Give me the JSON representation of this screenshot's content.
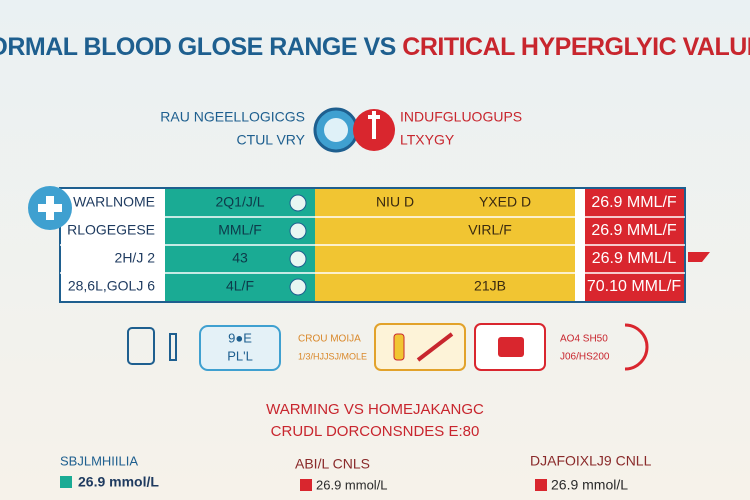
{
  "header": {
    "title_left": "NORMAL BLOOD GLOSE RANGE VS",
    "title_right": "CRITICAL HYPERGLYIC VALUES"
  },
  "legend": {
    "normal": [
      "RAU NGEELLOGICGS",
      "CTUL VRY"
    ],
    "critical": [
      "INDUFGLUOGUPS",
      "LTXYGY"
    ]
  },
  "table": {
    "rows": [
      {
        "label": "WARLNOME",
        "normal": "2Q1/J/L",
        "notes": [
          "NIU D",
          "YXED D"
        ],
        "critical": "26.9 MML/F"
      },
      {
        "label": "RLOGEGESE",
        "normal": "MML/F",
        "notes": [
          "VIRL/F"
        ],
        "critical": "26.9 MML/F"
      },
      {
        "label": "2H/J 2",
        "normal": "43",
        "critical": "26.9 MML/L"
      },
      {
        "label": "28,6L,GOLJ 6",
        "normal": "4L/F",
        "notes": [
          "21JB"
        ],
        "critical": "70.10 MML/F"
      }
    ]
  },
  "icons": {
    "blue_box": [
      "9●E",
      "PL'L"
    ],
    "orange_text": [
      "CROU MOIJA",
      "1/3/HJJSJ/MOLE"
    ],
    "red_text": [
      "AO4 SH50",
      "J06/HS200"
    ]
  },
  "warning": [
    "WARMING VS HOMEJAKANGC",
    "CRUDL DORCONSNDES E:80"
  ],
  "footer": [
    {
      "label": "SBJLMHIILIA",
      "value": "26.9 mmol/L"
    },
    {
      "label": "ABI/L CNLS",
      "value": "26.9 mmol/L"
    },
    {
      "label": "DJAFOIXLJ9 CNLL",
      "value": "26.9 mmol/L"
    }
  ]
}
